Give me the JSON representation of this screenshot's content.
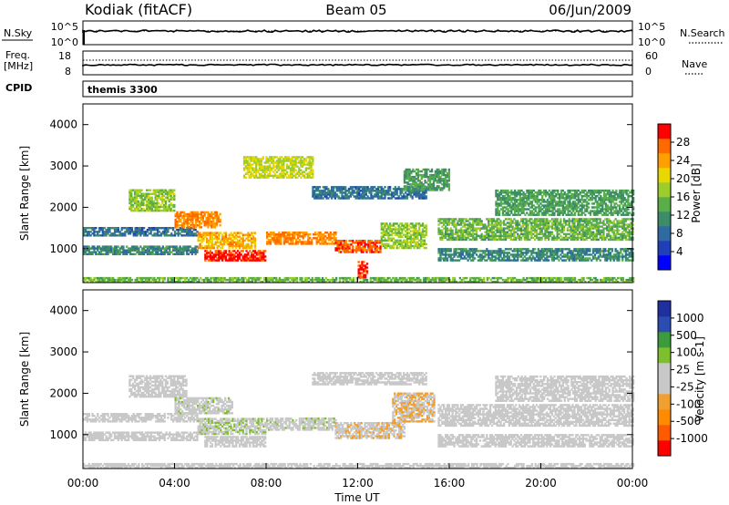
{
  "header": {
    "station": "Kodiak (fitACF)",
    "beam": "Beam 05",
    "date": "06/Jun/2009"
  },
  "nsky": {
    "left_label": "N.Sky",
    "right_label": "N.Search",
    "left_ticks": [
      "10^5",
      "10^0"
    ],
    "right_ticks": [
      "10^5",
      "10^0"
    ]
  },
  "freq": {
    "left_label": [
      "Freq.",
      "[MHz]"
    ],
    "right_label": "Nave",
    "left_ticks": [
      "18",
      "8"
    ],
    "right_ticks": [
      "60",
      "0"
    ]
  },
  "cpid": {
    "label": "CPID",
    "mode": "themis 3300"
  },
  "x_ticks": [
    "00:00",
    "04:00",
    "08:00",
    "12:00",
    "16:00",
    "20:00",
    "00:00"
  ],
  "xlabel": "Time UT",
  "colors": {
    "power": [
      "#0000ff",
      "#1f3fb8",
      "#2f6aa0",
      "#3c8c6a",
      "#5aae4a",
      "#9ccd2a",
      "#e8d800",
      "#ffa000",
      "#ff6a00",
      "#ff0000"
    ],
    "velocity": [
      "#ff0000",
      "#ff5a00",
      "#ff8c00",
      "#f0a030",
      "#c8c8c8",
      "#c8c8c8",
      "#7ec02c",
      "#3c9c3c",
      "#2b4cb0",
      "#1e2fa0"
    ]
  },
  "chart_data": [
    {
      "type": "heatmap",
      "title": "Power",
      "ylabel": "Slant Range [km]",
      "xlabel": "",
      "xlim": [
        0,
        24
      ],
      "ylim": [
        180,
        4500
      ],
      "y_ticks": [
        "1000",
        "2000",
        "3000",
        "4000"
      ],
      "colorbar": {
        "label": "Power [dB]",
        "ticks": [
          "4",
          "8",
          "12",
          "16",
          "20",
          "24",
          "28"
        ],
        "range": [
          0,
          30
        ]
      },
      "bands": [
        {
          "t0": 0.0,
          "t1": 24.0,
          "r0": 180,
          "r1": 300,
          "value": 14
        },
        {
          "t0": 0.0,
          "t1": 5.0,
          "r0": 1300,
          "r1": 1500,
          "value": 8
        },
        {
          "t0": 0.0,
          "t1": 5.0,
          "r0": 850,
          "r1": 1050,
          "value": 10
        },
        {
          "t0": 2.0,
          "t1": 4.0,
          "r0": 1900,
          "r1": 2400,
          "value": 16
        },
        {
          "t0": 4.0,
          "t1": 6.0,
          "r0": 1500,
          "r1": 1900,
          "value": 24
        },
        {
          "t0": 5.0,
          "t1": 7.5,
          "r0": 1000,
          "r1": 1400,
          "value": 22
        },
        {
          "t0": 5.3,
          "t1": 8.0,
          "r0": 700,
          "r1": 950,
          "value": 28
        },
        {
          "t0": 7.0,
          "t1": 10.0,
          "r0": 2700,
          "r1": 3200,
          "value": 18
        },
        {
          "t0": 8.0,
          "t1": 11.0,
          "r0": 1100,
          "r1": 1400,
          "value": 24
        },
        {
          "t0": 11.0,
          "t1": 13.0,
          "r0": 900,
          "r1": 1200,
          "value": 26
        },
        {
          "t0": 12.0,
          "t1": 12.4,
          "r0": 300,
          "r1": 700,
          "value": 28
        },
        {
          "t0": 13.0,
          "t1": 15.0,
          "r0": 1000,
          "r1": 1600,
          "value": 16
        },
        {
          "t0": 10.0,
          "t1": 15.0,
          "r0": 2200,
          "r1": 2500,
          "value": 8
        },
        {
          "t0": 14.0,
          "t1": 16.0,
          "r0": 2400,
          "r1": 2900,
          "value": 12
        },
        {
          "t0": 15.5,
          "t1": 24.0,
          "r0": 1200,
          "r1": 1700,
          "value": 14
        },
        {
          "t0": 15.5,
          "t1": 24.0,
          "r0": 700,
          "r1": 1000,
          "value": 10
        },
        {
          "t0": 18.0,
          "t1": 24.0,
          "r0": 1800,
          "r1": 2400,
          "value": 12
        }
      ]
    },
    {
      "type": "heatmap",
      "title": "Velocity",
      "ylabel": "Slant Range [km]",
      "xlabel": "Time UT",
      "xlim": [
        0,
        24
      ],
      "ylim": [
        180,
        4500
      ],
      "y_ticks": [
        "1000",
        "2000",
        "3000",
        "4000"
      ],
      "colorbar": {
        "label": "Velocity [m s-1]",
        "ticks": [
          "1000",
          "500",
          "100",
          "25",
          "-25",
          "-100",
          "-500",
          "-1000"
        ],
        "range": [
          -1200,
          1200
        ]
      },
      "bands": [
        {
          "t0": 0.0,
          "t1": 24.0,
          "r0": 180,
          "r1": 300,
          "value": 0
        },
        {
          "t0": 0.0,
          "t1": 5.0,
          "r0": 1300,
          "r1": 1500,
          "value": 0
        },
        {
          "t0": 0.0,
          "t1": 5.0,
          "r0": 850,
          "r1": 1050,
          "value": 0
        },
        {
          "t0": 2.0,
          "t1": 4.5,
          "r0": 1900,
          "r1": 2400,
          "value": 0
        },
        {
          "t0": 4.0,
          "t1": 6.5,
          "r0": 1500,
          "r1": 1900,
          "value": 60
        },
        {
          "t0": 5.0,
          "t1": 8.0,
          "r0": 1000,
          "r1": 1400,
          "value": 150
        },
        {
          "t0": 5.3,
          "t1": 8.0,
          "r0": 700,
          "r1": 950,
          "value": 0
        },
        {
          "t0": 8.0,
          "t1": 11.0,
          "r0": 1100,
          "r1": 1400,
          "value": 80
        },
        {
          "t0": 11.0,
          "t1": 14.0,
          "r0": 900,
          "r1": 1300,
          "value": -150
        },
        {
          "t0": 13.5,
          "t1": 15.3,
          "r0": 1300,
          "r1": 2000,
          "value": -200
        },
        {
          "t0": 10.0,
          "t1": 15.0,
          "r0": 2200,
          "r1": 2500,
          "value": 0
        },
        {
          "t0": 15.5,
          "t1": 24.0,
          "r0": 1200,
          "r1": 1700,
          "value": 0
        },
        {
          "t0": 15.5,
          "t1": 24.0,
          "r0": 700,
          "r1": 1000,
          "value": 0
        },
        {
          "t0": 18.0,
          "t1": 24.0,
          "r0": 1800,
          "r1": 2400,
          "value": 0
        }
      ]
    }
  ]
}
